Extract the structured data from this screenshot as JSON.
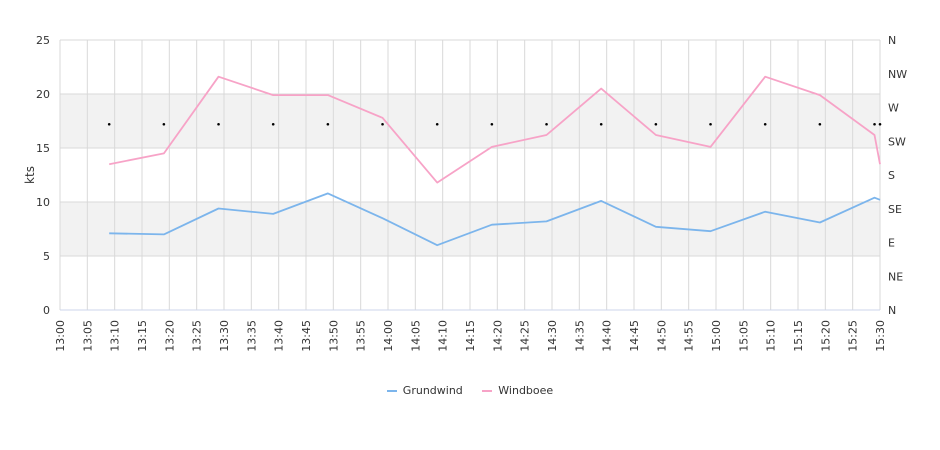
{
  "chart_data": {
    "type": "line",
    "ylabel": "kts",
    "ylim": [
      0,
      25
    ],
    "y_ticks": [
      "0",
      "5",
      "10",
      "15",
      "20",
      "25"
    ],
    "x_ticks": [
      "13:00",
      "13:05",
      "13:10",
      "13:15",
      "13:20",
      "13:25",
      "13:30",
      "13:35",
      "13:40",
      "13:45",
      "13:50",
      "13:55",
      "14:00",
      "14:05",
      "14:10",
      "14:15",
      "14:20",
      "14:25",
      "14:30",
      "14:35",
      "14:40",
      "14:45",
      "14:50",
      "14:55",
      "15:00",
      "15:05",
      "15:10",
      "15:15",
      "15:20",
      "15:25",
      "15:30"
    ],
    "right_axis_ticks": [
      "N",
      "NE",
      "E",
      "SE",
      "S",
      "SW",
      "W",
      "NW",
      "N"
    ],
    "bands": [
      [
        5,
        10
      ],
      [
        15,
        20
      ]
    ],
    "grid": true,
    "legend_position": "bottom",
    "x": [
      "13:09",
      "13:19",
      "13:29",
      "13:39",
      "13:49",
      "13:59",
      "14:09",
      "14:19",
      "14:29",
      "14:39",
      "14:49",
      "14:59",
      "15:09",
      "15:19",
      "15:29",
      "15:30"
    ],
    "series": [
      {
        "name": "Grundwind",
        "color": "#7cb5ec",
        "values": [
          7.1,
          7.0,
          9.4,
          8.9,
          10.8,
          8.5,
          6.0,
          7.9,
          8.2,
          10.1,
          7.7,
          7.3,
          9.1,
          8.1,
          10.4,
          10.2
        ]
      },
      {
        "name": "Windboee",
        "color": "#f7a3c7",
        "values": [
          13.5,
          14.5,
          21.6,
          19.9,
          19.9,
          17.8,
          11.8,
          15.1,
          16.2,
          20.5,
          16.2,
          15.1,
          21.6,
          19.9,
          16.2,
          13.5
        ]
      }
    ],
    "direction_markers": [
      {
        "x": "13:09",
        "value": 17.2
      },
      {
        "x": "13:19",
        "value": 17.2
      },
      {
        "x": "13:29",
        "value": 17.2
      },
      {
        "x": "13:39",
        "value": 17.2
      },
      {
        "x": "13:49",
        "value": 17.2
      },
      {
        "x": "13:59",
        "value": 17.2
      },
      {
        "x": "14:09",
        "value": 17.2
      },
      {
        "x": "14:19",
        "value": 17.2
      },
      {
        "x": "14:29",
        "value": 17.2
      },
      {
        "x": "14:39",
        "value": 17.2
      },
      {
        "x": "14:49",
        "value": 17.2
      },
      {
        "x": "14:59",
        "value": 17.2
      },
      {
        "x": "15:09",
        "value": 17.2
      },
      {
        "x": "15:19",
        "value": 17.2
      },
      {
        "x": "15:29",
        "value": 17.2
      },
      {
        "x": "15:30",
        "value": 17.2
      }
    ]
  }
}
